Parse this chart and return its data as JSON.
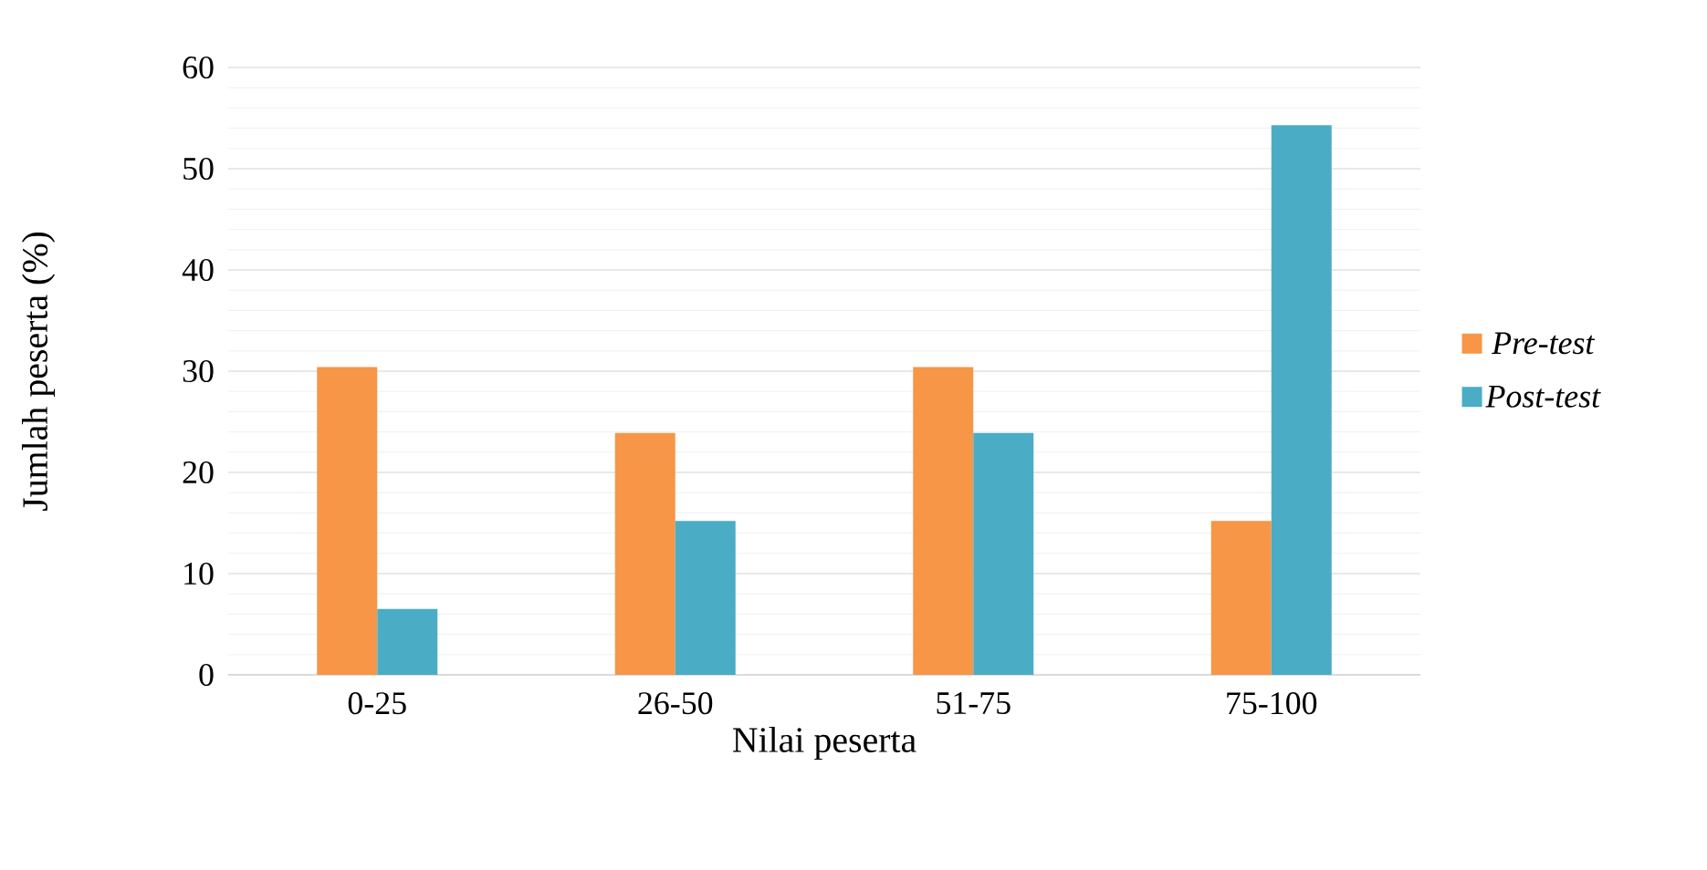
{
  "chart_data": {
    "type": "bar",
    "xlabel": "Nilai peserta",
    "ylabel": "Jumlah peserta (%)",
    "categories": [
      "0-25",
      "26-50",
      "51-75",
      "75-100"
    ],
    "series": [
      {
        "name": "Pre-test",
        "color": "#f79646",
        "values": [
          30.4,
          23.9,
          30.4,
          15.2
        ]
      },
      {
        "name": "Post-test",
        "color": "#4bacc6",
        "values": [
          6.5,
          15.2,
          23.9,
          54.3
        ]
      }
    ],
    "ylim": [
      0,
      60
    ],
    "yticks": [
      0,
      10,
      20,
      30,
      40,
      50,
      60
    ],
    "grid": "y",
    "legend": "right"
  }
}
